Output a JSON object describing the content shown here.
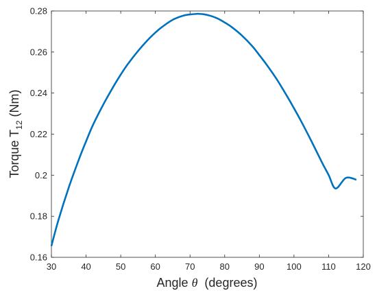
{
  "chart_data": {
    "type": "line",
    "title": "",
    "xlabel": {
      "main": "Angle ",
      "symbol": "θ",
      "unit": "  (degrees)"
    },
    "ylabel": {
      "main": "Torque T",
      "subscript": "12",
      "unit": " (Nm)"
    },
    "xlim": [
      30,
      120
    ],
    "ylim": [
      0.16,
      0.28
    ],
    "grid": false,
    "legend": "none",
    "x_ticks": [
      "30",
      "40",
      "50",
      "60",
      "70",
      "80",
      "90",
      "100",
      "110",
      "120"
    ],
    "y_ticks": [
      "0.16",
      "0.18",
      "0.2",
      "0.22",
      "0.24",
      "0.26",
      "0.28"
    ],
    "series": [
      {
        "color": "#0072BD",
        "x": [
          30,
          32,
          35,
          38,
          40,
          42,
          45,
          48,
          50,
          52,
          55,
          58,
          60,
          62,
          65,
          68,
          70,
          72,
          72.5,
          74,
          76,
          78,
          80,
          82,
          85,
          88,
          90,
          92,
          95,
          98,
          100,
          102,
          105,
          108,
          110,
          112,
          115,
          118
        ],
        "y": [
          0.1655,
          0.178,
          0.194,
          0.208,
          0.2165,
          0.2245,
          0.2345,
          0.2435,
          0.249,
          0.254,
          0.2605,
          0.2662,
          0.2695,
          0.2723,
          0.2757,
          0.2777,
          0.2783,
          0.2786,
          0.2786,
          0.2784,
          0.2776,
          0.2763,
          0.2744,
          0.2722,
          0.268,
          0.2628,
          0.2585,
          0.2541,
          0.2468,
          0.2385,
          0.2326,
          0.2265,
          0.2167,
          0.2065,
          0.2001,
          0.1935,
          0.1987,
          0.1978
        ]
      }
    ]
  }
}
